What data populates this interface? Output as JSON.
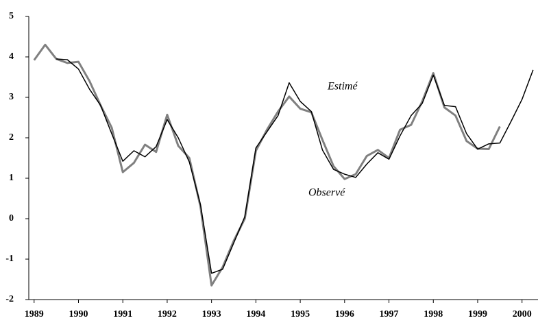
{
  "chart_data": {
    "type": "line",
    "annotations": [
      "Estimé",
      "Observé"
    ],
    "series": [
      {
        "name": "Estimé",
        "color": "#000000",
        "x": [
          1989.5,
          1989.75,
          1990,
          1990.25,
          1990.5,
          1990.75,
          1991,
          1991.25,
          1991.5,
          1991.75,
          1992,
          1992.25,
          1992.5,
          1992.75,
          1993,
          1993.25,
          1993.5,
          1993.75,
          1994,
          1994.25,
          1994.5,
          1994.75,
          1995,
          1995.25,
          1995.5,
          1995.75,
          1996,
          1996.25,
          1996.5,
          1996.75,
          1997,
          1997.25,
          1997.5,
          1997.75,
          1998,
          1998.25,
          1998.5,
          1998.75,
          1999,
          1999.25,
          1999.5,
          1999.75,
          2000,
          2000.25
        ],
        "values": [
          3.95,
          3.93,
          3.7,
          3.2,
          2.8,
          2.1,
          1.42,
          1.68,
          1.53,
          1.78,
          2.45,
          2.0,
          1.4,
          0.35,
          -1.35,
          -1.25,
          -0.6,
          0.05,
          1.75,
          2.15,
          2.55,
          3.36,
          2.9,
          2.65,
          1.7,
          1.22,
          1.1,
          1.02,
          1.35,
          1.63,
          1.47,
          2.05,
          2.55,
          2.85,
          3.55,
          2.8,
          2.77,
          2.1,
          1.72,
          1.85,
          1.87,
          2.4,
          2.95,
          3.68
        ]
      },
      {
        "name": "Observé",
        "color": "#808080",
        "x": [
          1989,
          1989.25,
          1989.5,
          1989.75,
          1990,
          1990.25,
          1990.5,
          1990.75,
          1991,
          1991.25,
          1991.5,
          1991.75,
          1992,
          1992.25,
          1992.5,
          1992.75,
          1993,
          1993.25,
          1993.5,
          1993.75,
          1994,
          1994.25,
          1994.5,
          1994.75,
          1995,
          1995.25,
          1995.5,
          1995.75,
          1996,
          1996.25,
          1996.5,
          1996.75,
          1997,
          1997.25,
          1997.5,
          1997.75,
          1998,
          1998.25,
          1998.5,
          1998.75,
          1999,
          1999.25,
          1999.5
        ],
        "values": [
          3.92,
          4.3,
          3.95,
          3.85,
          3.88,
          3.4,
          2.8,
          2.25,
          1.15,
          1.38,
          1.83,
          1.65,
          2.57,
          1.8,
          1.5,
          0.3,
          -1.65,
          -1.2,
          -0.55,
          0.0,
          1.68,
          2.2,
          2.65,
          3.02,
          2.72,
          2.63,
          1.95,
          1.3,
          0.98,
          1.1,
          1.55,
          1.7,
          1.5,
          2.2,
          2.32,
          2.9,
          3.6,
          2.75,
          2.55,
          1.92,
          1.73,
          1.72,
          2.28
        ]
      }
    ],
    "xlim": [
      1988.88,
      2000.36
    ],
    "xticks": [
      1989,
      1990,
      1991,
      1992,
      1993,
      1994,
      1995,
      1996,
      1997,
      1998,
      1999,
      2000
    ],
    "ylim": [
      -2,
      5
    ],
    "yticks": [
      -2,
      -1,
      0,
      1,
      2,
      3,
      4,
      5
    ],
    "grid": false
  }
}
